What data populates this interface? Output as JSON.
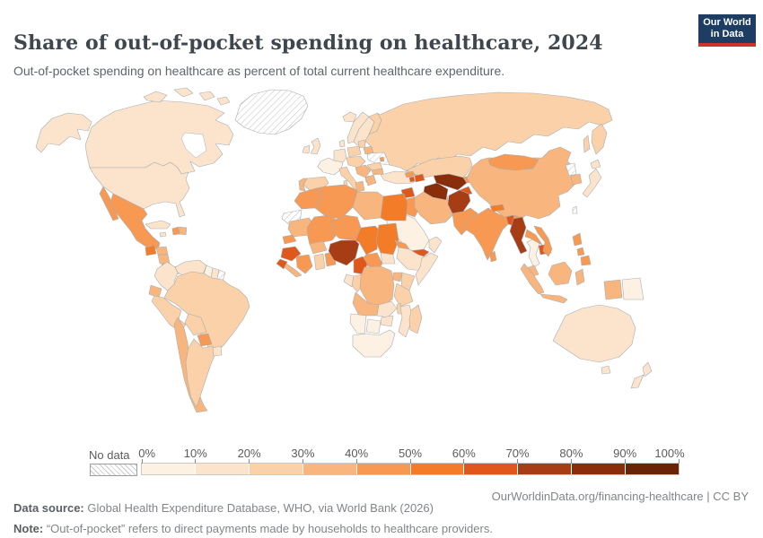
{
  "header": {
    "title": "Share of out-of-pocket spending on healthcare, 2024",
    "subtitle": "Out-of-pocket spending on healthcare as percent of total current healthcare expenditure.",
    "logo": {
      "line1": "Our World",
      "line2": "in Data",
      "bg_color": "#1d3d63",
      "accent_color": "#cc342b"
    }
  },
  "chart_data": {
    "type": "choropleth",
    "title": "Share of out-of-pocket spending on healthcare, 2024",
    "unit": "percent of total current healthcare expenditure",
    "legend": {
      "no_data_label": "No data",
      "tick_labels": [
        "0%",
        "10%",
        "20%",
        "30%",
        "40%",
        "50%",
        "60%",
        "70%",
        "80%",
        "90%",
        "100%"
      ],
      "bins": [
        "0-10%",
        "10-20%",
        "20-30%",
        "30-40%",
        "40-50%",
        "50-60%",
        "60-70%",
        "70-80%",
        "80-90%",
        "90-100%"
      ],
      "colors": [
        "#fdf1e3",
        "#fce3cb",
        "#fad1a8",
        "#f8b57e",
        "#f79952",
        "#f37c29",
        "#e0571b",
        "#a63d14",
        "#8a2d0b",
        "#6b2305"
      ],
      "no_data_pattern": "diagonal-hatch"
    },
    "countries": {
      "canada": 1,
      "united-states": 1,
      "greenland": "no_data",
      "iceland": 1,
      "mexico": 4,
      "guatemala": 5,
      "honduras": 3,
      "nicaragua": 3,
      "costa-rica": 3,
      "panama": 3,
      "cuba": 1,
      "jamaica": 1,
      "haiti": 4,
      "dominican-republic": 3,
      "venezuela": 1,
      "colombia": 1,
      "guyana": 0,
      "suriname": 1,
      "french-guiana": "no_data",
      "ecuador": 3,
      "peru": 2,
      "brazil": 2,
      "bolivia": 2,
      "paraguay": 4,
      "chile": 3,
      "argentina": 2,
      "uruguay": 1,
      "united-kingdom": 1,
      "ireland": 1,
      "norway": 1,
      "sweden": 1,
      "finland": 2,
      "denmark": 1,
      "baltic-states": 2,
      "belarus": 3,
      "ukraine": "no_data",
      "moldova": 4,
      "poland": 2,
      "germany": 1,
      "france": 0,
      "spain": 2,
      "portugal": 3,
      "italy": 2,
      "central-europe": 2,
      "balkans": 3,
      "albania": 4,
      "romania": 2,
      "bulgaria": 3,
      "greece": 3,
      "turkey": 1,
      "russia": 2,
      "kazakhstan": 2,
      "georgia": 4,
      "azerbaijan": 6,
      "armenia": 6,
      "syria": 6,
      "jordan": 3,
      "iraq": 4,
      "iran": 3,
      "saudi-arabia": 0,
      "yemen": 6,
      "oman": 1,
      "turkmenistan": 8,
      "uzbekistan": 8,
      "tajikistan": 6,
      "kyrgyzstan": 4,
      "afghanistan": 7,
      "pakistan": 4,
      "india": 4,
      "nepal": 5,
      "bangladesh": 6,
      "sri-lanka": 4,
      "myanmar": 7,
      "thailand": 0,
      "laos": 4,
      "cambodia": 6,
      "vietnam": 4,
      "malaysia": 3,
      "indonesia": 3,
      "philippines": 4,
      "papua-new-guinea": 0,
      "china": 3,
      "mongolia": 4,
      "north-korea": "no_data",
      "south-korea": 3,
      "japan": 1,
      "taiwan": "no_data",
      "morocco": 4,
      "western-sahara": "no_data",
      "algeria": 4,
      "tunisia": 3,
      "libya": 3,
      "egypt": 5,
      "mauritania": 3,
      "mali": 4,
      "senegal": 4,
      "guinea": 6,
      "sierra-leone": 6,
      "liberia": 3,
      "ivory-coast": 4,
      "ghana": 2,
      "burkina-faso": 3,
      "benin": 4,
      "niger": 4,
      "nigeria": 7,
      "chad": 5,
      "sudan": 5,
      "eritrea": 4,
      "ethiopia": 1,
      "somalia": 1,
      "south-sudan": 1,
      "central-african-republic": 4,
      "cameroon": 6,
      "gabon": 1,
      "congo": 2,
      "democratic-republic-of-congo": 3,
      "uganda": 3,
      "kenya": 2,
      "tanzania": 2,
      "angola": 3,
      "zambia": 1,
      "malawi": 2,
      "mozambique": 1,
      "zimbabwe": 1,
      "botswana": 0,
      "namibia": 0,
      "south-africa": 0,
      "madagascar": 2,
      "australia": 1,
      "new-zealand": 1
    }
  },
  "footer": {
    "source_label": "Data source:",
    "source_text": " Global Health Expenditure Database, WHO, via World Bank (2026)",
    "link_text": "OurWorldinData.org/financing-healthcare | CC BY",
    "note_label": "Note:",
    "note_text": " “Out-of-pocket” refers to direct payments made by households to healthcare providers."
  }
}
